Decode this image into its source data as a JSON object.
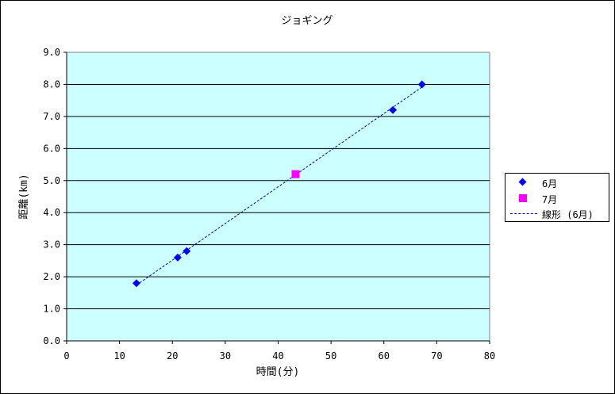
{
  "chart_data": {
    "type": "scatter",
    "title": "ジョギング",
    "xlabel": "時間(分)",
    "ylabel": "距離(km)",
    "xlim": [
      0,
      80
    ],
    "ylim": [
      0.0,
      9.0
    ],
    "x_ticks": [
      "0",
      "10",
      "20",
      "30",
      "40",
      "50",
      "60",
      "70",
      "80"
    ],
    "y_ticks": [
      "0.0",
      "1.0",
      "2.0",
      "3.0",
      "4.0",
      "5.0",
      "6.0",
      "7.0",
      "8.0",
      "9.0"
    ],
    "grid": "horizontal",
    "legend_position": "right",
    "series": [
      {
        "name": "6月",
        "marker": "diamond",
        "color": "#0000ff",
        "points": [
          [
            13.2,
            1.8
          ],
          [
            21,
            2.6
          ],
          [
            22.7,
            2.8
          ],
          [
            61.7,
            7.2
          ],
          [
            67.2,
            8.0
          ]
        ]
      },
      {
        "name": "7月",
        "marker": "square",
        "color": "#ff00ff",
        "points": [
          [
            43.3,
            5.2
          ]
        ]
      }
    ],
    "trendline": {
      "name": "線形 (6月)",
      "of_series": "6月",
      "color": "#0000c0",
      "style": "dashed",
      "x_range": [
        13.2,
        67.2
      ]
    },
    "plot_background": "#ccffff"
  }
}
